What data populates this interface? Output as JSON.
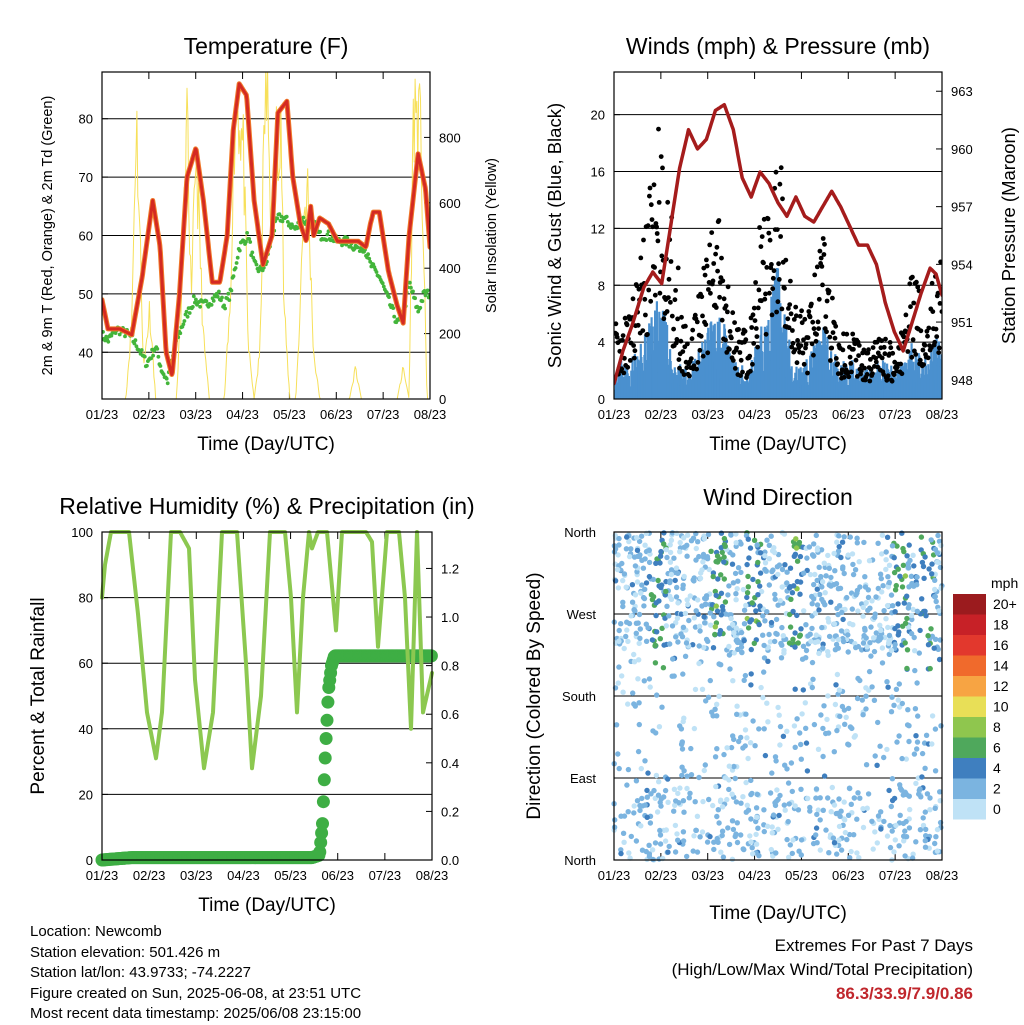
{
  "chart_data": [
    {
      "type": "line",
      "title": "Temperature (F)",
      "xlabel": "Time (Day/UTC)",
      "ylabel": "2m & 9m T (Red, Orange) & 2m Td (Green)",
      "ylabel_right": "Solar Insolation (Yellow)",
      "x_ticks": [
        "01/23",
        "02/23",
        "03/23",
        "04/23",
        "05/23",
        "06/23",
        "07/23",
        "08/23"
      ],
      "ylim": [
        32,
        88
      ],
      "y_ticks": [
        40,
        50,
        60,
        70,
        80
      ],
      "ylim_right": [
        0,
        1000
      ],
      "y_ticks_right": [
        0,
        200,
        400,
        600,
        800
      ],
      "grid": true,
      "series": [
        {
          "name": "2m & 9m T",
          "color": "#d42a22",
          "x": [
            0,
            0.2,
            0.6,
            1.0,
            1.35,
            1.7,
            1.95,
            2.15,
            2.35,
            2.6,
            2.85,
            3.15,
            3.4,
            3.7,
            3.95,
            4.2,
            4.4,
            4.6,
            4.85,
            5.1,
            5.4,
            5.7,
            5.9,
            6.2,
            6.4,
            6.65,
            6.85,
            7.0,
            7.1,
            7.3,
            7.6,
            7.9,
            8.1,
            8.35,
            8.6,
            8.85,
            9.0,
            9.1,
            9.3,
            9.6,
            9.9,
            10.1,
            10.3,
            10.6,
            10.85,
            11.0
          ],
          "y": [
            49,
            44,
            44,
            43,
            53,
            66,
            58,
            40,
            36,
            50,
            70,
            75,
            66,
            52,
            52,
            60,
            78,
            86,
            84,
            66,
            55,
            60,
            81,
            83,
            70,
            62,
            59,
            65,
            60,
            63,
            62,
            59,
            59,
            59,
            59,
            58,
            62,
            64,
            64,
            54,
            48,
            45,
            60,
            74,
            68,
            58
          ]
        },
        {
          "name": "2m Td",
          "color": "#43b53a",
          "x": [
            0,
            0.2,
            0.5,
            0.9,
            1.2,
            1.5,
            1.8,
            2.0,
            2.2,
            2.5,
            2.8,
            3.1,
            3.4,
            3.7,
            3.9,
            4.1,
            4.3,
            4.6,
            4.9,
            5.1,
            5.3,
            5.5,
            5.7,
            5.9,
            6.1,
            6.3,
            6.5,
            6.7,
            6.9,
            7.1,
            7.3,
            7.6,
            7.9,
            8.2,
            8.5,
            8.8,
            9.0,
            9.3,
            9.6,
            9.9,
            10.1,
            10.3,
            10.6,
            10.8,
            11.0
          ],
          "y": [
            43,
            42,
            44,
            43,
            41,
            38,
            41,
            37,
            35,
            42,
            46,
            49,
            48,
            49,
            50,
            48,
            50,
            58,
            60,
            55,
            54,
            55,
            60,
            63,
            63,
            62,
            61,
            63,
            62,
            62,
            60,
            60,
            59,
            59,
            58,
            58,
            55,
            53,
            49,
            45,
            46,
            52,
            47,
            50,
            50
          ]
        },
        {
          "name": "Solar Insolation",
          "color": "#f7e05a",
          "axis": "right",
          "x": [
            0,
            0.2,
            0.5,
            0.8,
            1.0,
            1.15,
            1.25,
            1.4,
            1.6,
            1.8,
            2.0,
            2.2,
            2.5,
            2.7,
            2.85,
            3.0,
            3.15,
            3.4,
            3.6,
            3.9,
            4.1,
            4.3,
            4.4,
            4.5,
            4.6,
            4.75,
            4.9,
            5.1,
            5.3,
            5.45,
            5.55,
            5.7,
            5.85,
            6.0,
            6.1,
            6.3,
            6.5,
            6.6,
            6.75,
            6.9,
            7.1,
            7.3,
            7.5,
            7.7,
            7.9,
            8.1,
            8.3,
            8.5,
            8.7,
            8.8,
            9.0,
            9.1,
            9.3,
            9.5,
            9.7,
            9.9,
            10.1,
            10.3,
            10.45,
            10.55,
            10.7,
            10.9,
            11.0
          ],
          "y": [
            0,
            0,
            0,
            0,
            260,
            950,
            600,
            100,
            300,
            0,
            0,
            0,
            0,
            400,
            920,
            300,
            840,
            200,
            0,
            0,
            0,
            300,
            800,
            980,
            950,
            800,
            180,
            0,
            150,
            950,
            980,
            500,
            850,
            950,
            300,
            0,
            0,
            200,
            600,
            680,
            150,
            0,
            0,
            0,
            0,
            0,
            0,
            100,
            0,
            0,
            0,
            0,
            0,
            0,
            0,
            0,
            100,
            0,
            960,
            950,
            850,
            0,
            0
          ]
        }
      ]
    },
    {
      "type": "scatter",
      "title": "Winds (mph) & Pressure (mb)",
      "xlabel": "Time (Day/UTC)",
      "ylabel": "Sonic Wind & Gust (Blue, Black)",
      "ylabel_right": "Station Pressure (Maroon)",
      "x_ticks": [
        "01/23",
        "02/23",
        "03/23",
        "04/23",
        "05/23",
        "06/23",
        "07/23",
        "08/23"
      ],
      "ylim": [
        0,
        23
      ],
      "y_ticks": [
        0,
        4,
        8,
        12,
        16,
        20
      ],
      "ylim_right": [
        947,
        964
      ],
      "y_ticks_right": [
        948,
        951,
        954,
        957,
        960,
        963
      ],
      "grid": true,
      "series": [
        {
          "name": "Sonic Wind",
          "color": "#4a90cf",
          "x": [
            0,
            0.5,
            1.0,
            1.5,
            2.0,
            2.5,
            3.0,
            3.5,
            4.0,
            4.5,
            5.0,
            5.5,
            6.0,
            6.5,
            7.0,
            7.5,
            8.0,
            8.5,
            9.0,
            9.5,
            10.0,
            10.5,
            11.0
          ],
          "y": [
            2,
            2,
            3,
            6,
            2,
            1.5,
            3,
            5,
            2,
            1.5,
            4,
            7,
            2,
            2,
            4,
            2,
            2,
            1.5,
            2,
            1.5,
            3,
            2,
            4
          ]
        },
        {
          "name": "Gust",
          "color": "#000000",
          "x": [
            0,
            0.5,
            1.0,
            1.5,
            2.0,
            2.5,
            3.0,
            3.5,
            4.0,
            4.5,
            5.0,
            5.5,
            6.0,
            6.5,
            7.0,
            7.5,
            8.0,
            8.5,
            9.0,
            9.5,
            10.0,
            10.5,
            11.0
          ],
          "y": [
            4,
            5,
            10,
            19,
            8,
            3,
            8,
            12,
            5,
            4,
            11,
            17,
            6,
            5,
            11,
            4,
            4,
            3,
            4,
            3,
            8,
            5,
            10
          ]
        },
        {
          "name": "Station Pressure",
          "color": "#a51c1c",
          "axis": "right",
          "x": [
            0,
            0.3,
            0.6,
            1.0,
            1.3,
            1.6,
            1.9,
            2.2,
            2.5,
            2.8,
            3.1,
            3.4,
            3.7,
            4.0,
            4.3,
            4.6,
            4.9,
            5.2,
            5.5,
            5.8,
            6.1,
            6.4,
            6.7,
            7.0,
            7.3,
            7.6,
            7.9,
            8.2,
            8.5,
            8.8,
            9.1,
            9.4,
            9.7,
            10.0,
            10.3,
            10.6,
            10.8,
            11.0
          ],
          "y": [
            947.8,
            949.5,
            950.8,
            952.8,
            953.6,
            953.0,
            956.0,
            959.0,
            961.0,
            960.0,
            960.5,
            962.0,
            962.3,
            961.0,
            958.5,
            957.5,
            958.8,
            958.2,
            957.2,
            956.5,
            957.5,
            956.5,
            956.2,
            957.0,
            957.8,
            957.0,
            956.0,
            955.0,
            955.0,
            954.0,
            952.0,
            950.5,
            949.5,
            951.0,
            952.5,
            953.8,
            953.5,
            952.4
          ]
        }
      ]
    },
    {
      "type": "line",
      "title": "Relative Humidity (%) & Precipitation (in)",
      "xlabel": "Time (Day/UTC)",
      "ylabel": "Percent & Total Rainfall",
      "x_ticks": [
        "01/23",
        "02/23",
        "03/23",
        "04/23",
        "05/23",
        "06/23",
        "07/23",
        "08/23"
      ],
      "ylim": [
        0,
        100
      ],
      "y_ticks": [
        0,
        20,
        40,
        60,
        80,
        100
      ],
      "ylim_right": [
        0,
        1.35
      ],
      "y_ticks_right": [
        0.0,
        0.2,
        0.4,
        0.6,
        0.8,
        1.0,
        1.2
      ],
      "grid": true,
      "series": [
        {
          "name": "Relative Humidity",
          "color": "#8cc850",
          "x": [
            0,
            0.1,
            0.3,
            0.6,
            0.9,
            1.2,
            1.5,
            1.8,
            2.0,
            2.3,
            2.6,
            2.9,
            3.1,
            3.4,
            3.7,
            4.0,
            4.2,
            4.5,
            4.8,
            5.0,
            5.3,
            5.6,
            5.9,
            6.1,
            6.3,
            6.5,
            6.7,
            6.9,
            7.0,
            7.2,
            7.5,
            7.8,
            8.0,
            8.2,
            8.5,
            8.8,
            9.0,
            9.2,
            9.5,
            9.7,
            9.9,
            10.1,
            10.3,
            10.5,
            10.7,
            11.0
          ],
          "y": [
            80,
            90,
            100,
            100,
            100,
            75,
            45,
            31,
            45,
            100,
            100,
            95,
            55,
            28,
            45,
            100,
            100,
            100,
            60,
            28,
            50,
            100,
            100,
            100,
            80,
            45,
            80,
            100,
            95,
            100,
            100,
            70,
            100,
            100,
            100,
            100,
            97,
            65,
            100,
            100,
            100,
            80,
            40,
            100,
            45,
            57
          ]
        },
        {
          "name": "Total Rainfall",
          "color": "#3eae44",
          "axis": "right",
          "x": [
            0,
            1,
            2,
            3,
            4,
            5,
            6,
            7,
            7.25,
            7.35,
            7.45,
            7.55,
            7.65,
            7.75,
            8,
            9,
            10,
            11
          ],
          "y": [
            0,
            0.01,
            0.01,
            0.01,
            0.01,
            0.01,
            0.01,
            0.01,
            0.02,
            0.15,
            0.45,
            0.7,
            0.8,
            0.84,
            0.84,
            0.84,
            0.84,
            0.84
          ]
        }
      ]
    },
    {
      "type": "scatter",
      "title": "Wind Direction",
      "xlabel": "Time (Day/UTC)",
      "ylabel": "Direction (Colored By Speed)",
      "x_ticks": [
        "01/23",
        "02/23",
        "03/23",
        "04/23",
        "05/23",
        "06/23",
        "07/23",
        "08/23"
      ],
      "y_ticks": [
        "North",
        "East",
        "South",
        "West",
        "North"
      ],
      "ylim": [
        0,
        360
      ],
      "legend": {
        "title": "mph",
        "labels": [
          "20+",
          "18",
          "16",
          "14",
          "12",
          "10",
          "8",
          "6",
          "4",
          "2",
          "0"
        ],
        "colors": [
          "#9b1b1e",
          "#c72127",
          "#e2382d",
          "#f06a2c",
          "#f7a443",
          "#e8df57",
          "#8fc64e",
          "#4fa85c",
          "#3f7fbf",
          "#7bb4e0",
          "#bfe2f6"
        ]
      }
    }
  ],
  "station_info": {
    "location": "Location: Newcomb",
    "elevation": "Station elevation: 501.426 m",
    "latlon": "Station lat/lon: 43.9733; -74.2227",
    "created": "Figure created on Sun, 2025-06-08, at 23:51 UTC",
    "recent": "Most recent data timestamp: 2025/06/08 23:15:00"
  },
  "extremes": {
    "title": "Extremes For Past 7 Days",
    "subtitle": "(High/Low/Max Wind/Total Precipitation)",
    "values": "86.3/33.9/7.9/0.86",
    "color": "#c0272d"
  }
}
